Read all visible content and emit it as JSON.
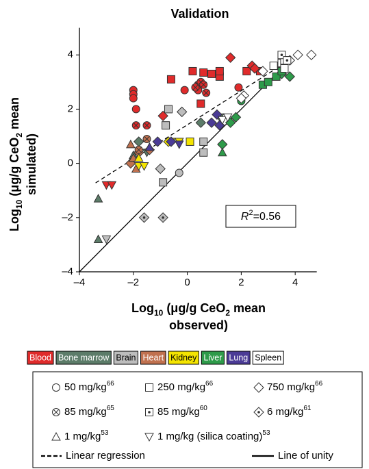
{
  "chart_data": {
    "type": "scatter",
    "title": "Validation",
    "xlabel": [
      [
        {
          "text": "Log"
        },
        {
          "text": "10",
          "sub": true
        },
        {
          "text": " (μg/g CeO"
        },
        {
          "text": "2",
          "sub": true
        },
        {
          "text": " mean"
        }
      ],
      [
        {
          "text": "observed)"
        }
      ]
    ],
    "ylabel": [
      [
        {
          "text": "Log"
        },
        {
          "text": "10",
          "sub": true
        },
        {
          "text": " (μg/g CeO"
        },
        {
          "text": "2",
          "sub": true
        },
        {
          "text": " mean"
        }
      ],
      [
        {
          "text": "simulated)"
        }
      ]
    ],
    "xlim": [
      -4,
      4.8
    ],
    "ylim": [
      -4,
      5
    ],
    "xticks": [
      {
        "value": -4,
        "label": "–4"
      },
      {
        "value": -2,
        "label": "–2"
      },
      0,
      2,
      4
    ],
    "yticks": [
      {
        "value": -4,
        "label": "–4"
      },
      {
        "value": -2,
        "label": "–2"
      },
      0,
      2,
      4
    ],
    "annotation": {
      "symbol": "R",
      "power": "2",
      "text": "=0.56"
    },
    "series": [
      {
        "name": "Blood",
        "color": "#e02b2b",
        "groups": [
          {
            "marker": "circle",
            "x": [
              -2,
              -2,
              -2,
              -1.9,
              -0.1,
              0.4,
              1.9
            ],
            "y": [
              2.7,
              2.55,
              2.4,
              2.0,
              2.7,
              2.7,
              2.8
            ]
          },
          {
            "marker": "square",
            "x": [
              -0.6,
              0.2,
              0.6,
              0.9,
              1.2,
              1.2,
              2.2,
              2.7,
              0.5
            ],
            "y": [
              3.1,
              3.4,
              3.35,
              3.3,
              3.2,
              3.4,
              3.4,
              3.4,
              2.2
            ]
          },
          {
            "marker": "diamond",
            "x": [
              1.6,
              2.4,
              -0.9,
              2.5
            ],
            "y": [
              3.9,
              3.6,
              1.75,
              3.5
            ]
          },
          {
            "marker": "circle-x",
            "x": [
              0.4,
              0.5,
              0.6,
              0.3,
              0.7,
              -1.5,
              -1.9
            ],
            "y": [
              2.9,
              3.0,
              2.9,
              2.8,
              2.6,
              1.4,
              1.4
            ]
          },
          {
            "marker": "triangle-down",
            "x": [
              -3.0,
              -2.8
            ],
            "y": [
              -0.8,
              -0.8
            ]
          }
        ]
      },
      {
        "name": "Bone marrow",
        "color": "#5c7c69",
        "groups": [
          {
            "marker": "triangle",
            "x": [
              -3.3,
              -3.3,
              -2.0
            ],
            "y": [
              -1.3,
              -2.8,
              0.3
            ]
          },
          {
            "marker": "diamond",
            "x": [
              0.5,
              -1.8
            ],
            "y": [
              1.5,
              0.8
            ]
          },
          {
            "marker": "triangle-down",
            "x": [
              1.2,
              -1.5
            ],
            "y": [
              1.7,
              0.4
            ]
          }
        ]
      },
      {
        "name": "Brain",
        "color": "#bdbdbd",
        "groups": [
          {
            "marker": "square",
            "x": [
              -0.8,
              -0.9,
              0.6,
              0.6,
              -0.7
            ],
            "y": [
              1.4,
              -0.7,
              0.4,
              0.8,
              2.0
            ]
          },
          {
            "marker": "circle",
            "x": [
              -0.3
            ],
            "y": [
              -0.35
            ]
          },
          {
            "marker": "diamond-dot",
            "x": [
              -1.6,
              -0.9
            ],
            "y": [
              -2.0,
              -2.0
            ]
          },
          {
            "marker": "diamond",
            "x": [
              -0.2,
              -1.0
            ],
            "y": [
              1.9,
              -0.2
            ]
          },
          {
            "marker": "triangle-down",
            "x": [
              -3.0
            ],
            "y": [
              -2.8
            ]
          }
        ]
      },
      {
        "name": "Heart",
        "color": "#c0714f",
        "groups": [
          {
            "marker": "diamond",
            "x": [
              -1.8,
              -1.4,
              -2.1
            ],
            "y": [
              0.4,
              0.5,
              0.0
            ]
          },
          {
            "marker": "triangle",
            "x": [
              -2.0,
              -2.1,
              -1.9
            ],
            "y": [
              0.2,
              0.7,
              -0.2
            ]
          },
          {
            "marker": "circle-x",
            "x": [
              -1.5,
              -1.8
            ],
            "y": [
              0.9,
              0.5
            ]
          }
        ]
      },
      {
        "name": "Kidney",
        "color": "#f4e400",
        "groups": [
          {
            "marker": "triangle-down",
            "x": [
              -1.8,
              -1.6,
              -0.6,
              -0.3
            ],
            "y": [
              -0.1,
              -0.1,
              0.8,
              0.8
            ]
          },
          {
            "marker": "square",
            "x": [
              0.1
            ],
            "y": [
              0.8
            ]
          },
          {
            "marker": "triangle",
            "x": [
              -1.8
            ],
            "y": [
              0.2
            ]
          },
          {
            "marker": "diamond",
            "x": [
              -0.7
            ],
            "y": [
              0.8
            ]
          }
        ]
      },
      {
        "name": "Liver",
        "color": "#2e9b4a",
        "groups": [
          {
            "marker": "circle",
            "x": [
              2.0
            ],
            "y": [
              2.3
            ]
          },
          {
            "marker": "diamond",
            "x": [
              3.5,
              3.8,
              1.8,
              1.6,
              1.3
            ],
            "y": [
              3.3,
              3.2,
              1.7,
              1.5,
              0.7
            ]
          },
          {
            "marker": "square",
            "x": [
              2.8,
              3.0,
              3.3,
              3.5
            ],
            "y": [
              2.9,
              3.0,
              3.2,
              3.4
            ]
          },
          {
            "marker": "triangle",
            "x": [
              1.3
            ],
            "y": [
              0.4
            ]
          }
        ]
      },
      {
        "name": "Lung",
        "color": "#4b3b96",
        "groups": [
          {
            "marker": "diamond",
            "x": [
              1.2,
              0.9,
              -0.6,
              -1.1,
              1.1
            ],
            "y": [
              1.4,
              1.5,
              0.8,
              0.8,
              1.8
            ]
          },
          {
            "marker": "triangle-down",
            "x": [
              -0.3
            ],
            "y": [
              0.7
            ]
          },
          {
            "marker": "triangle",
            "x": [
              -1.4
            ],
            "y": [
              0.6
            ]
          }
        ]
      },
      {
        "name": "Spleen",
        "color": "#ffffff",
        "groups": [
          {
            "marker": "diamond",
            "x": [
              4.6,
              4.1,
              3.8,
              2.8,
              2.1,
              2.0
            ],
            "y": [
              4.0,
              4.0,
              3.8,
              3.4,
              2.5,
              2.4
            ]
          },
          {
            "marker": "square",
            "x": [
              3.5,
              3.6,
              3.6,
              3.2
            ],
            "y": [
              3.7,
              3.8,
              3.5,
              3.6
            ]
          },
          {
            "marker": "square-dot",
            "x": [
              3.5,
              3.7
            ],
            "y": [
              4.0,
              3.8
            ]
          },
          {
            "marker": "triangle-down",
            "x": [
              1.3,
              1.5
            ],
            "y": [
              1.6,
              1.7
            ]
          }
        ]
      }
    ],
    "markers": [
      {
        "marker": "circle",
        "label": "50 mg/kg",
        "ref": "66"
      },
      {
        "marker": "square",
        "label": "250 mg/kg",
        "ref": "66"
      },
      {
        "marker": "diamond",
        "label": "750 mg/kg",
        "ref": "66"
      },
      {
        "marker": "circle-x",
        "label": "85 mg/kg",
        "ref": "65"
      },
      {
        "marker": "square-dot",
        "label": "85 mg/kg",
        "ref": "60"
      },
      {
        "marker": "diamond-dot",
        "label": "6 mg/kg",
        "ref": "61"
      },
      {
        "marker": "triangle",
        "label": "1 mg/kg",
        "ref": "53"
      },
      {
        "marker": "triangle-down",
        "label": "1 mg/kg (silica coating)",
        "ref": "53"
      }
    ],
    "lines": [
      {
        "name": "Linear regression",
        "style": "dashed",
        "x": [
          -3.4,
          3.7
        ],
        "y": [
          -0.72,
          3.75
        ]
      },
      {
        "name": "Line of unity",
        "style": "solid",
        "x": [
          -4,
          3.8
        ],
        "y": [
          -4,
          3.8
        ]
      }
    ]
  }
}
